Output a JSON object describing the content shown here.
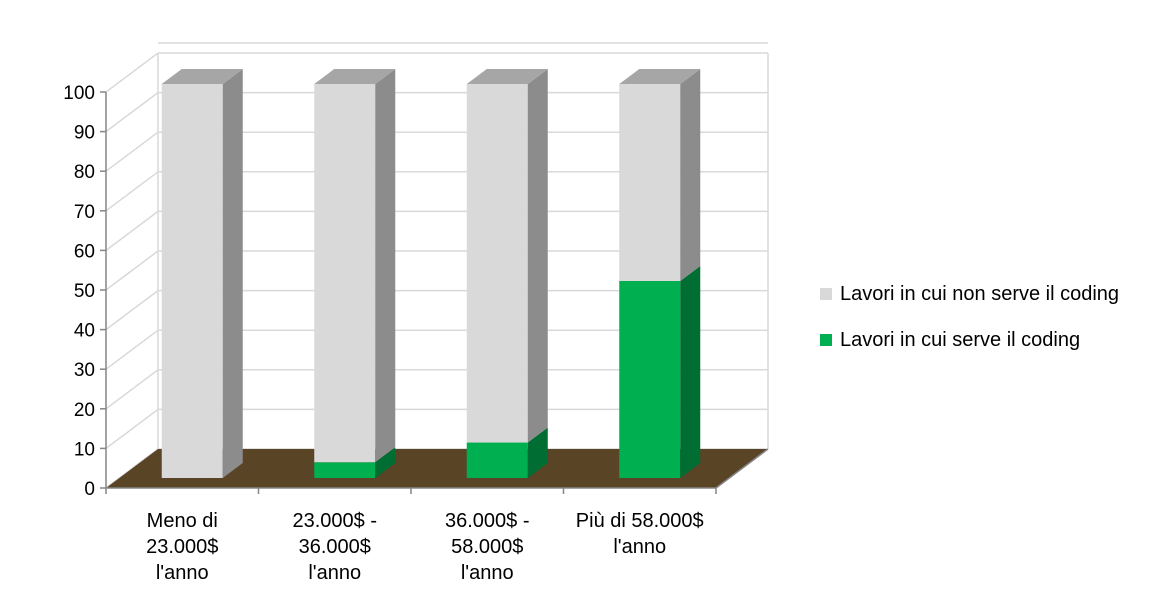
{
  "chart_data": {
    "type": "bar",
    "stacked": true,
    "three_d": true,
    "categories": [
      [
        "Meno di",
        "23.000$",
        "l'anno"
      ],
      [
        "23.000$ -",
        "36.000$",
        "l'anno"
      ],
      [
        "36.000$ -",
        "58.000$",
        "l'anno"
      ],
      [
        "Più di 58.000$",
        "l'anno"
      ]
    ],
    "series": [
      {
        "name": "Lavori in cui serve il coding",
        "values": [
          0,
          4,
          9,
          50
        ],
        "color": "#00b050"
      },
      {
        "name": "Lavori in cui non serve il coding",
        "values": [
          100,
          96,
          91,
          50
        ],
        "color": "#d9d9d9"
      }
    ],
    "ylim": [
      0,
      100
    ],
    "yticks": [
      0,
      10,
      20,
      30,
      40,
      50,
      60,
      70,
      80,
      90,
      100
    ],
    "grid": true,
    "legend_position": "right",
    "floor_color": "#5a4426"
  },
  "legend": {
    "items": [
      {
        "label": "Lavori in cui non serve il coding",
        "color": "#d9d9d9"
      },
      {
        "label": "Lavori in cui serve il coding",
        "color": "#00b050"
      }
    ]
  }
}
